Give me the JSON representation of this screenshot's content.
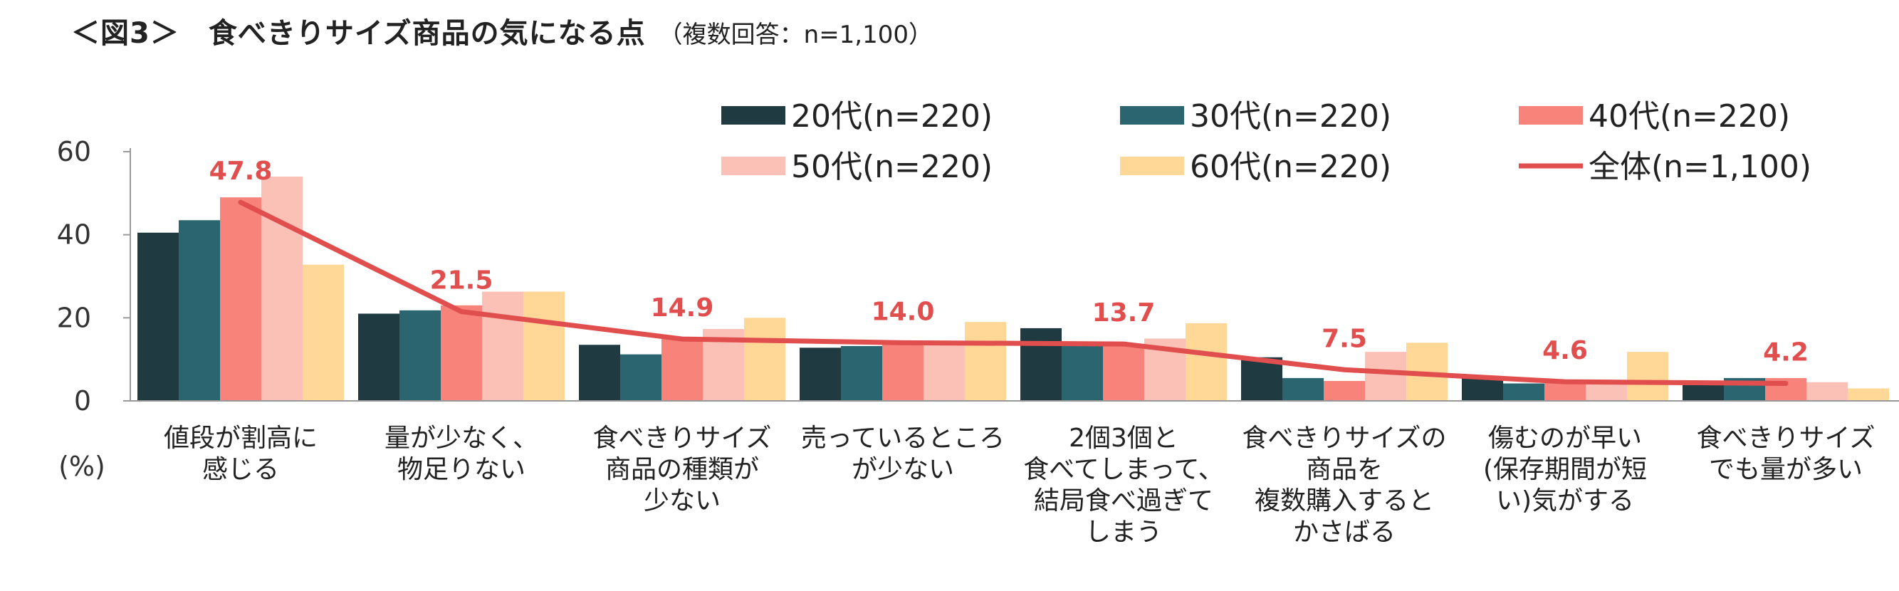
{
  "title": {
    "main": "＜図3＞　食べきりサイズ商品の気になる点",
    "sub": "（複数回答：n=1,100）"
  },
  "chart_data": {
    "type": "bar",
    "title": "＜図3＞　食べきりサイズ商品の気になる点",
    "subtitle": "（複数回答：n=1,100）",
    "ylabel": "(%)",
    "ylim": [
      0,
      60
    ],
    "yticks": [
      0,
      20,
      40,
      60
    ],
    "legend_position": "top-right",
    "categories": [
      [
        "値段が割高に",
        "感じる"
      ],
      [
        "量が少なく、",
        "物足りない"
      ],
      [
        "食べきりサイズ",
        "商品の種類が",
        "少ない"
      ],
      [
        "売っているところ",
        "が少ない"
      ],
      [
        "2個3個と",
        "食べてしまって、",
        "結局食べ過ぎて",
        "しまう"
      ],
      [
        "食べきりサイズの",
        "商品を",
        "複数購入すると",
        "かさばる"
      ],
      [
        "傷むのが早い",
        "(保存期間が短",
        "い)気がする"
      ],
      [
        "食べきりサイズ",
        "でも量が多い"
      ]
    ],
    "series": [
      {
        "name": "20代(n=220)",
        "type": "bar",
        "color": "#1F3A40",
        "values": [
          40.5,
          21.0,
          13.5,
          12.8,
          17.5,
          10.5,
          5.5,
          4.5
        ]
      },
      {
        "name": "30代(n=220)",
        "type": "bar",
        "color": "#2B6670",
        "values": [
          43.5,
          21.8,
          11.2,
          13.2,
          13.3,
          5.5,
          4.2,
          5.5
        ]
      },
      {
        "name": "40代(n=220)",
        "type": "bar",
        "color": "#F7837A",
        "values": [
          49.0,
          23.0,
          15.2,
          14.0,
          13.5,
          4.8,
          4.5,
          5.5
        ]
      },
      {
        "name": "50代(n=220)",
        "type": "bar",
        "color": "#FBC0B6",
        "values": [
          54.0,
          26.3,
          17.3,
          14.2,
          15.0,
          11.8,
          4.8,
          4.5
        ]
      },
      {
        "name": "60代(n=220)",
        "type": "bar",
        "color": "#FFD898",
        "values": [
          32.8,
          26.3,
          20.0,
          19.0,
          18.7,
          14.0,
          11.8,
          3.0
        ]
      },
      {
        "name": "全体(n=1,100)",
        "type": "line",
        "color": "#E04E4E",
        "values": [
          47.8,
          21.5,
          14.9,
          14.0,
          13.7,
          7.5,
          4.6,
          4.2
        ],
        "labels": [
          "47.8",
          "21.5",
          "14.9",
          "14.0",
          "13.7",
          "7.5",
          "4.6",
          "4.2"
        ]
      }
    ]
  }
}
